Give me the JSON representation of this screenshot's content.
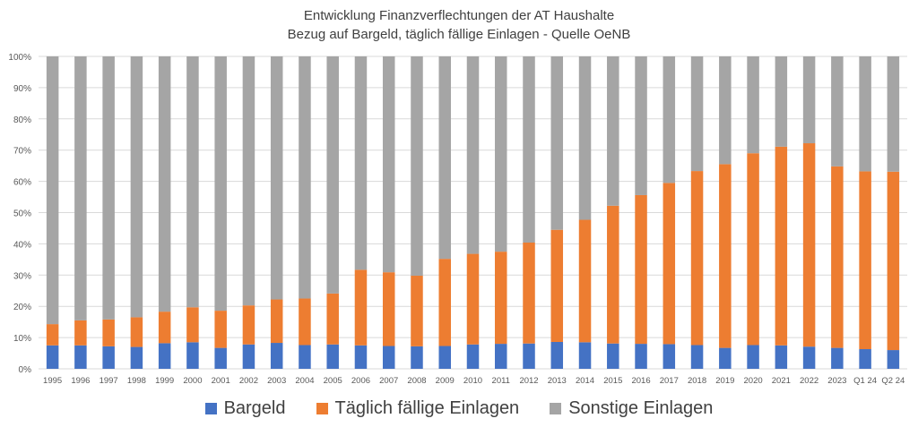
{
  "chart_data": {
    "type": "bar",
    "stacked": true,
    "percent_stacked": true,
    "title": "Entwicklung Finanzverflechtungen der AT Haushalte",
    "subtitle": "Bezug auf Bargeld, täglich fällige Einlagen - Quelle OeNB",
    "categories": [
      "1995",
      "1996",
      "1997",
      "1998",
      "1999",
      "2000",
      "2001",
      "2002",
      "2003",
      "2004",
      "2005",
      "2006",
      "2007",
      "2008",
      "2009",
      "2010",
      "2011",
      "2012",
      "2013",
      "2014",
      "2015",
      "2016",
      "2017",
      "2018",
      "2019",
      "2020",
      "2021",
      "2022",
      "2023",
      "Q1 24",
      "Q2 24"
    ],
    "series": [
      {
        "name": "Bargeld",
        "color": "#4472c4",
        "values": [
          7.5,
          7.5,
          7.2,
          7.0,
          8.2,
          8.5,
          6.7,
          7.8,
          8.3,
          7.6,
          7.8,
          7.5,
          7.3,
          7.2,
          7.3,
          7.8,
          8.0,
          8.1,
          8.6,
          8.5,
          8.1,
          8.0,
          7.9,
          7.6,
          6.7,
          7.6,
          7.5,
          7.1,
          6.7,
          6.3,
          6.0
        ]
      },
      {
        "name": "Täglich fällige Einlagen",
        "color": "#ed7d31",
        "values": [
          6.8,
          8.0,
          8.6,
          9.5,
          10.1,
          11.2,
          11.9,
          12.5,
          13.9,
          14.9,
          16.3,
          24.2,
          23.6,
          22.6,
          27.9,
          29.0,
          29.5,
          32.3,
          35.9,
          39.2,
          44.1,
          47.6,
          51.6,
          55.7,
          58.8,
          61.4,
          63.6,
          65.1,
          58.1,
          56.9,
          57.1
        ]
      },
      {
        "name": "Sonstige Einlagen",
        "color": "#a5a5a5",
        "values": [
          85.7,
          84.5,
          84.2,
          83.5,
          81.7,
          80.3,
          81.4,
          79.7,
          77.8,
          77.5,
          75.9,
          68.3,
          69.1,
          70.2,
          64.8,
          63.2,
          62.5,
          59.6,
          55.5,
          52.3,
          47.8,
          44.4,
          40.5,
          36.7,
          34.5,
          31.0,
          28.9,
          27.8,
          35.2,
          36.8,
          36.9
        ]
      }
    ],
    "y_ticks": [
      "0%",
      "10%",
      "20%",
      "30%",
      "40%",
      "50%",
      "60%",
      "70%",
      "80%",
      "90%",
      "100%"
    ],
    "ylim": [
      0,
      100
    ],
    "grid": true,
    "legend_position": "bottom"
  }
}
